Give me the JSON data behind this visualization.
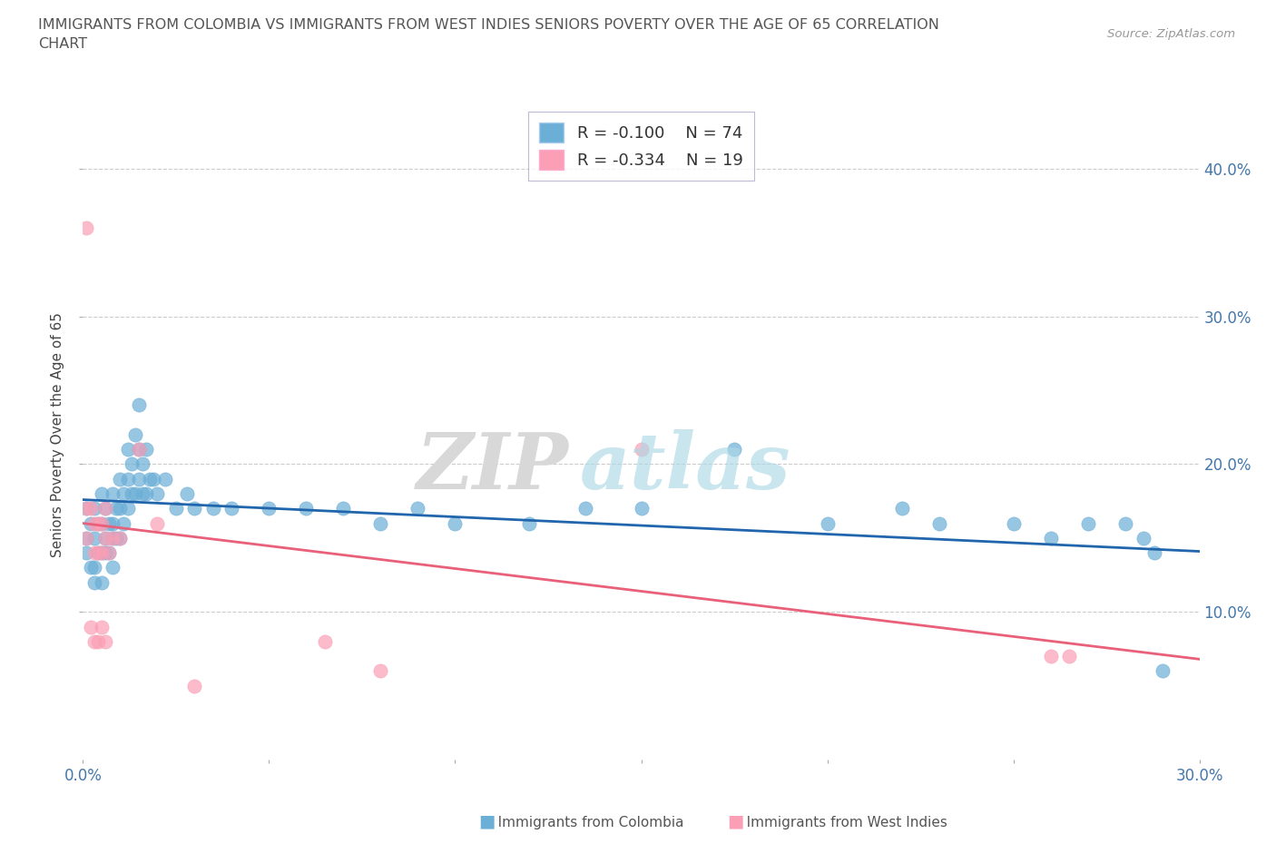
{
  "title_line1": "IMMIGRANTS FROM COLOMBIA VS IMMIGRANTS FROM WEST INDIES SENIORS POVERTY OVER THE AGE OF 65 CORRELATION",
  "title_line2": "CHART",
  "source": "Source: ZipAtlas.com",
  "ylabel": "Seniors Poverty Over the Age of 65",
  "xlim": [
    0.0,
    0.3
  ],
  "ylim": [
    0.0,
    0.44
  ],
  "colombia_color": "#6baed6",
  "west_indies_color": "#fa9fb5",
  "colombia_trend_color": "#2166ac",
  "west_indies_trend_color": "#e8607a",
  "colombia_R": -0.1,
  "colombia_N": 74,
  "west_indies_R": -0.334,
  "west_indies_N": 19,
  "colombia_scatter_x": [
    0.001,
    0.001,
    0.001,
    0.002,
    0.002,
    0.003,
    0.003,
    0.003,
    0.003,
    0.004,
    0.004,
    0.005,
    0.005,
    0.005,
    0.005,
    0.006,
    0.006,
    0.006,
    0.007,
    0.007,
    0.008,
    0.008,
    0.008,
    0.008,
    0.009,
    0.009,
    0.01,
    0.01,
    0.01,
    0.011,
    0.011,
    0.012,
    0.012,
    0.012,
    0.013,
    0.013,
    0.014,
    0.014,
    0.015,
    0.015,
    0.015,
    0.016,
    0.016,
    0.017,
    0.017,
    0.018,
    0.019,
    0.02,
    0.022,
    0.025,
    0.028,
    0.03,
    0.035,
    0.04,
    0.05,
    0.06,
    0.07,
    0.08,
    0.09,
    0.1,
    0.12,
    0.135,
    0.15,
    0.175,
    0.2,
    0.22,
    0.23,
    0.25,
    0.26,
    0.27,
    0.28,
    0.285,
    0.288,
    0.29
  ],
  "colombia_scatter_y": [
    0.17,
    0.15,
    0.14,
    0.16,
    0.13,
    0.17,
    0.15,
    0.13,
    0.12,
    0.16,
    0.14,
    0.18,
    0.16,
    0.14,
    0.12,
    0.17,
    0.15,
    0.14,
    0.16,
    0.14,
    0.18,
    0.16,
    0.15,
    0.13,
    0.17,
    0.15,
    0.19,
    0.17,
    0.15,
    0.18,
    0.16,
    0.21,
    0.19,
    0.17,
    0.2,
    0.18,
    0.22,
    0.18,
    0.24,
    0.21,
    0.19,
    0.2,
    0.18,
    0.21,
    0.18,
    0.19,
    0.19,
    0.18,
    0.19,
    0.17,
    0.18,
    0.17,
    0.17,
    0.17,
    0.17,
    0.17,
    0.17,
    0.16,
    0.17,
    0.16,
    0.16,
    0.17,
    0.17,
    0.21,
    0.16,
    0.17,
    0.16,
    0.16,
    0.15,
    0.16,
    0.16,
    0.15,
    0.14,
    0.06
  ],
  "west_indies_scatter_x": [
    0.001,
    0.001,
    0.002,
    0.003,
    0.003,
    0.004,
    0.004,
    0.005,
    0.005,
    0.006,
    0.006,
    0.007,
    0.008,
    0.01,
    0.015,
    0.02,
    0.15,
    0.26,
    0.265
  ],
  "west_indies_scatter_y": [
    0.17,
    0.15,
    0.17,
    0.16,
    0.14,
    0.16,
    0.14,
    0.16,
    0.14,
    0.17,
    0.15,
    0.14,
    0.15,
    0.15,
    0.21,
    0.16,
    0.21,
    0.07,
    0.07
  ],
  "west_indies_outlier_x": [
    0.001,
    0.002,
    0.003,
    0.004,
    0.005,
    0.006,
    0.03,
    0.065,
    0.08
  ],
  "west_indies_outlier_y": [
    0.36,
    0.09,
    0.08,
    0.08,
    0.09,
    0.08,
    0.05,
    0.08,
    0.06
  ],
  "background_color": "#ffffff",
  "grid_color": "#cccccc",
  "right_ytick_vals": [
    0.1,
    0.2,
    0.3,
    0.4
  ],
  "right_ytick_labels": [
    "10.0%",
    "20.0%",
    "30.0%",
    "40.0%"
  ]
}
